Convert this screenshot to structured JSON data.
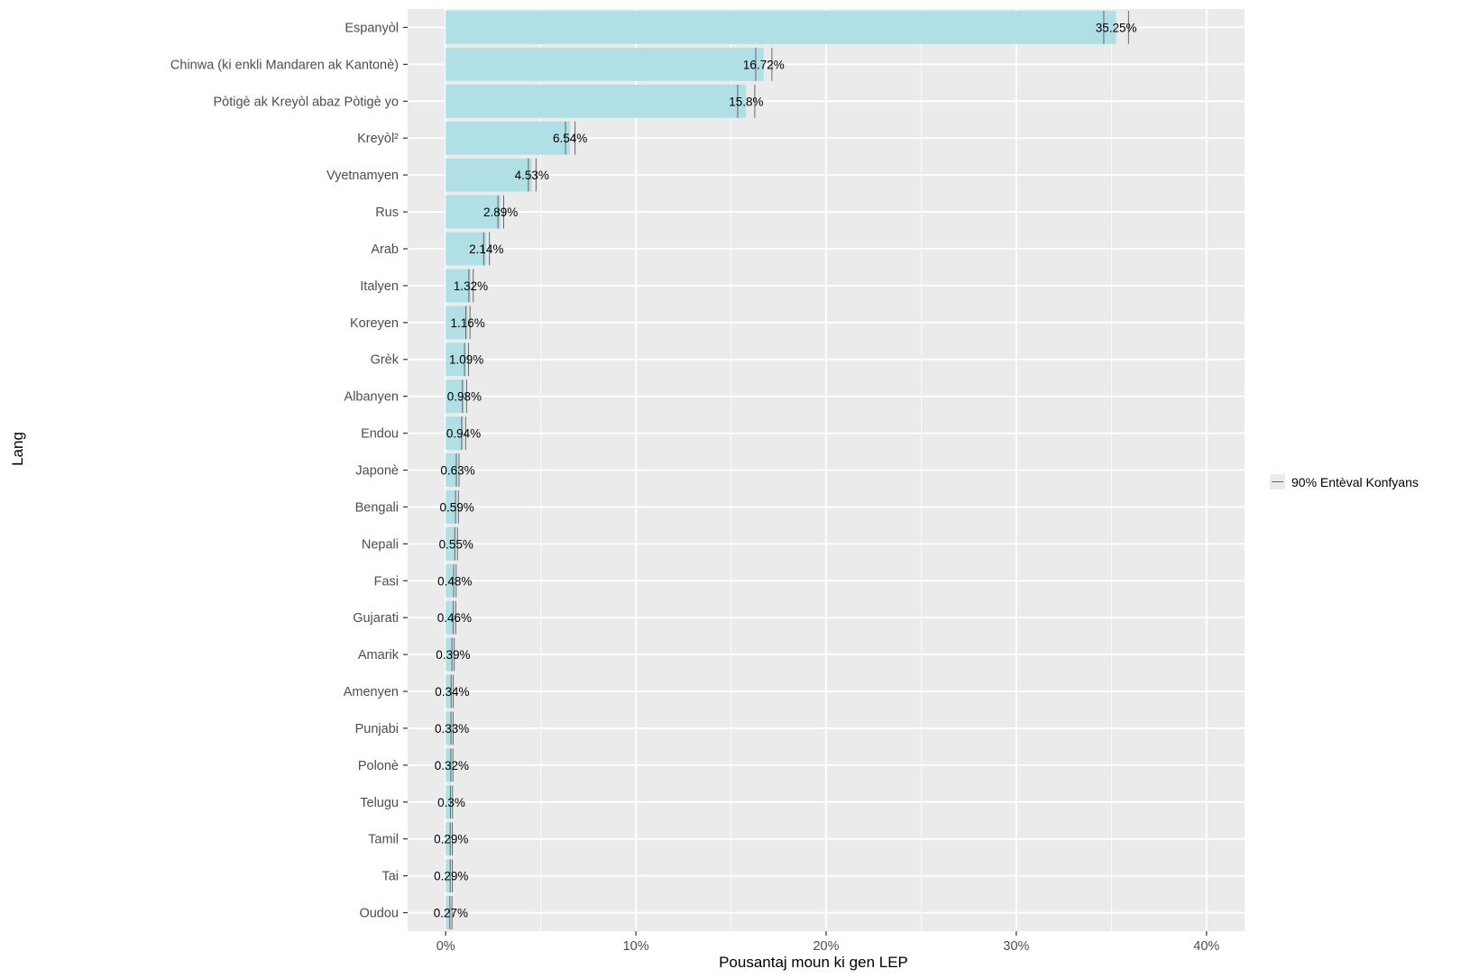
{
  "chart_data": {
    "type": "bar",
    "orientation": "horizontal",
    "xlabel": "Pousantaj moun ki gen LEP",
    "ylabel": "Lang",
    "xlim": [
      -2,
      42
    ],
    "x_ticks": [
      0,
      10,
      20,
      30,
      40
    ],
    "x_tick_labels": [
      "0%",
      "10%",
      "20%",
      "30%",
      "40%"
    ],
    "grid": true,
    "legend": {
      "position": "right",
      "entries": [
        "90% Entèval Konfyans"
      ]
    },
    "categories": [
      "Espanyòl",
      "Chinwa (ki enkli Mandaren ak Kantonè)",
      "Pòtigè ak Kreyòl abaz Pòtigè yo",
      "Kreyòl²",
      "Vyetnamyen",
      "Rus",
      "Arab",
      "Italyen",
      "Koreyen",
      "Grèk",
      "Albanyen",
      "Endou",
      "Japonè",
      "Bengali",
      "Nepali",
      "Fasi",
      "Gujarati",
      "Amarik",
      "Amenyen",
      "Punjabi",
      "Polonè",
      "Telugu",
      "Tamil",
      "Tai",
      "Oudou"
    ],
    "values": [
      35.25,
      16.72,
      15.8,
      6.54,
      4.53,
      2.89,
      2.14,
      1.32,
      1.16,
      1.09,
      0.98,
      0.94,
      0.63,
      0.59,
      0.55,
      0.48,
      0.46,
      0.39,
      0.34,
      0.33,
      0.32,
      0.3,
      0.29,
      0.29,
      0.27
    ],
    "value_labels": [
      "35.25%",
      "16.72%",
      "15.8%",
      "6.54%",
      "4.53%",
      "2.89%",
      "2.14%",
      "1.32%",
      "1.16%",
      "1.09%",
      "0.98%",
      "0.94%",
      "0.63%",
      "0.59%",
      "0.55%",
      "0.48%",
      "0.46%",
      "0.39%",
      "0.34%",
      "0.33%",
      "0.32%",
      "0.3%",
      "0.29%",
      "0.29%",
      "0.27%"
    ],
    "ci_low": [
      34.6,
      16.3,
      15.35,
      6.3,
      4.35,
      2.75,
      2.0,
      1.22,
      1.06,
      0.99,
      0.88,
      0.84,
      0.56,
      0.52,
      0.48,
      0.42,
      0.4,
      0.33,
      0.29,
      0.28,
      0.27,
      0.25,
      0.24,
      0.24,
      0.22
    ],
    "ci_high": [
      35.9,
      17.15,
      16.25,
      6.8,
      4.75,
      3.05,
      2.3,
      1.45,
      1.28,
      1.2,
      1.1,
      1.05,
      0.7,
      0.67,
      0.62,
      0.55,
      0.53,
      0.45,
      0.4,
      0.39,
      0.38,
      0.36,
      0.35,
      0.35,
      0.33
    ],
    "colors": {
      "bar": "#b0e0e6",
      "panel": "#ebebeb",
      "grid": "#ffffff",
      "errorbar": "#666666",
      "axis_text": "#4d4d4d",
      "title_text": "#000000"
    }
  }
}
